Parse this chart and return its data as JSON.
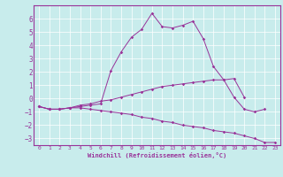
{
  "xlabel": "Windchill (Refroidissement éolien,°C)",
  "ylabel": "",
  "background_color": "#c8ecec",
  "line_color": "#993399",
  "xlim": [
    -0.5,
    23.5
  ],
  "ylim": [
    -3.5,
    7.0
  ],
  "yticks": [
    -3,
    -2,
    -1,
    0,
    1,
    2,
    3,
    4,
    5,
    6
  ],
  "xticks": [
    0,
    1,
    2,
    3,
    4,
    5,
    6,
    7,
    8,
    9,
    10,
    11,
    12,
    13,
    14,
    15,
    16,
    17,
    18,
    19,
    20,
    21,
    22,
    23
  ],
  "line1_x": [
    0,
    1,
    2,
    3,
    4,
    5,
    6,
    7,
    8,
    9,
    10,
    11,
    12,
    13,
    14,
    15,
    16,
    17,
    18,
    19,
    20,
    21,
    22
  ],
  "line1_y": [
    -0.6,
    -0.8,
    -0.8,
    -0.7,
    -0.6,
    -0.5,
    -0.4,
    2.1,
    3.5,
    4.6,
    5.2,
    6.4,
    5.4,
    5.3,
    5.5,
    5.8,
    4.5,
    2.4,
    1.4,
    0.1,
    -0.8,
    -1.0,
    -0.8
  ],
  "line2_x": [
    0,
    1,
    2,
    3,
    4,
    5,
    6,
    7,
    8,
    9,
    10,
    11,
    12,
    13,
    14,
    15,
    16,
    17,
    18,
    19,
    20
  ],
  "line2_y": [
    -0.6,
    -0.8,
    -0.8,
    -0.7,
    -0.5,
    -0.4,
    -0.2,
    -0.1,
    0.1,
    0.3,
    0.5,
    0.7,
    0.9,
    1.0,
    1.1,
    1.2,
    1.3,
    1.4,
    1.4,
    1.5,
    0.1
  ],
  "line3_x": [
    0,
    1,
    2,
    3,
    4,
    5,
    6,
    7,
    8,
    9,
    10,
    11,
    12,
    13,
    14,
    15,
    16,
    17,
    18,
    19,
    20,
    21,
    22,
    23
  ],
  "line3_y": [
    -0.6,
    -0.8,
    -0.8,
    -0.7,
    -0.7,
    -0.8,
    -0.9,
    -1.0,
    -1.1,
    -1.2,
    -1.4,
    -1.5,
    -1.7,
    -1.8,
    -2.0,
    -2.1,
    -2.2,
    -2.4,
    -2.5,
    -2.6,
    -2.8,
    -3.0,
    -3.3,
    -3.3
  ]
}
